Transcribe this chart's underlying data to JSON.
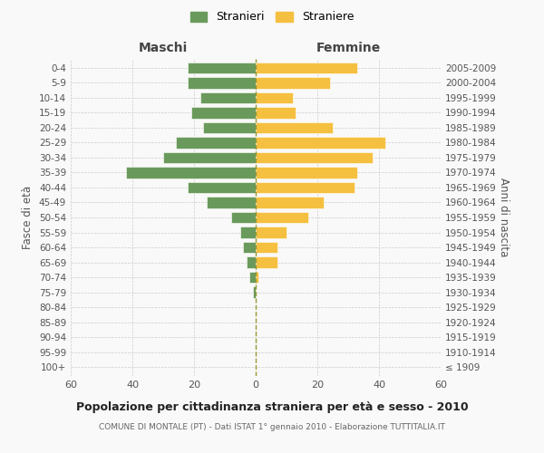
{
  "age_groups": [
    "0-4",
    "5-9",
    "10-14",
    "15-19",
    "20-24",
    "25-29",
    "30-34",
    "35-39",
    "40-44",
    "45-49",
    "50-54",
    "55-59",
    "60-64",
    "65-69",
    "70-74",
    "75-79",
    "80-84",
    "85-89",
    "90-94",
    "95-99",
    "100+"
  ],
  "birth_years": [
    "2005-2009",
    "2000-2004",
    "1995-1999",
    "1990-1994",
    "1985-1989",
    "1980-1984",
    "1975-1979",
    "1970-1974",
    "1965-1969",
    "1960-1964",
    "1955-1959",
    "1950-1954",
    "1945-1949",
    "1940-1944",
    "1935-1939",
    "1930-1934",
    "1925-1929",
    "1920-1924",
    "1915-1919",
    "1910-1914",
    "≤ 1909"
  ],
  "males": [
    22,
    22,
    18,
    21,
    17,
    26,
    30,
    42,
    22,
    16,
    8,
    5,
    4,
    3,
    2,
    1,
    0,
    0,
    0,
    0,
    0
  ],
  "females": [
    33,
    24,
    12,
    13,
    25,
    42,
    38,
    33,
    32,
    22,
    17,
    10,
    7,
    7,
    1,
    0,
    0,
    0,
    0,
    0,
    0
  ],
  "male_color": "#6a9a5b",
  "female_color": "#f5c040",
  "background_color": "#f9f9f9",
  "grid_color": "#cccccc",
  "title": "Popolazione per cittadinanza straniera per età e sesso - 2010",
  "subtitle": "COMUNE DI MONTALE (PT) - Dati ISTAT 1° gennaio 2010 - Elaborazione TUTTITALIA.IT",
  "legend_male": "Stranieri",
  "legend_female": "Straniere",
  "xlabel_left": "Maschi",
  "xlabel_right": "Femmine",
  "ylabel_left": "Fasce di età",
  "ylabel_right": "Anni di nascita",
  "xlim": 60
}
